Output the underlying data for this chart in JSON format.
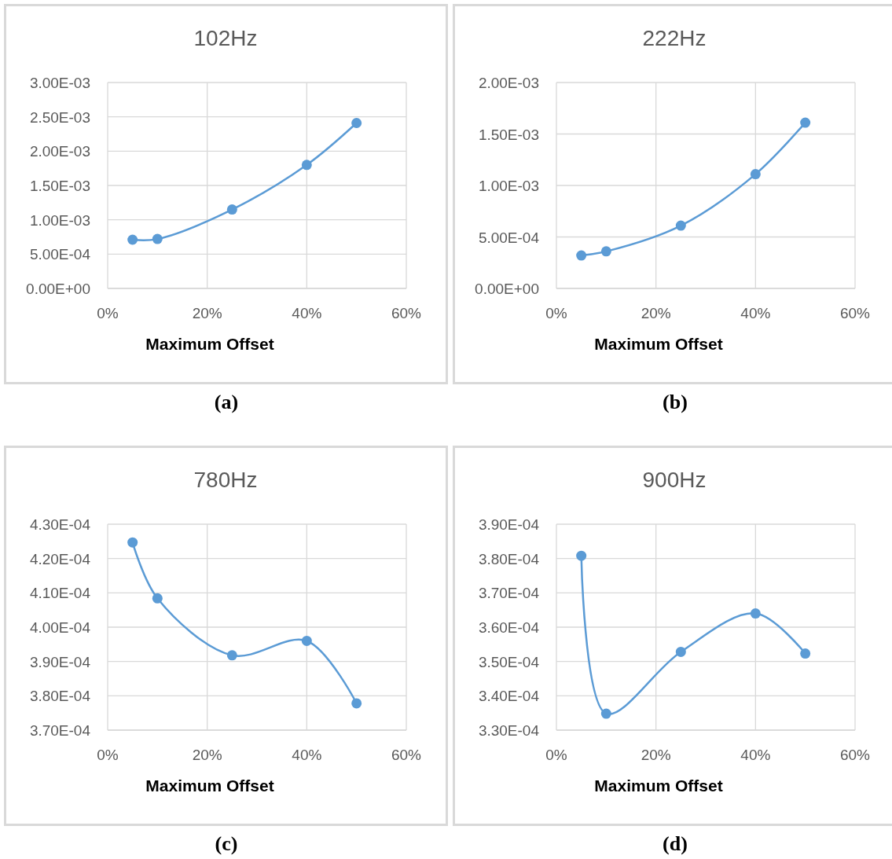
{
  "chart_data": [
    {
      "type": "line",
      "title": "102Hz",
      "xlabel": "Maximum Offset",
      "x": [
        5,
        10,
        25,
        40,
        50
      ],
      "series": [
        {
          "color": "#5b9bd5",
          "values": [
            0.00071,
            0.00072,
            0.00115,
            0.0018,
            0.00241
          ]
        }
      ],
      "xlim": [
        0,
        60
      ],
      "xticks": [
        {
          "value": 0,
          "label": "0%"
        },
        {
          "value": 20,
          "label": "20%"
        },
        {
          "value": 40,
          "label": "40%"
        },
        {
          "value": 60,
          "label": "60%"
        }
      ],
      "ylim": [
        0,
        0.003
      ],
      "yticks": [
        {
          "value": 0,
          "label": "0.00E+00"
        },
        {
          "value": 0.0005,
          "label": "5.00E-04"
        },
        {
          "value": 0.001,
          "label": "1.00E-03"
        },
        {
          "value": 0.0015,
          "label": "1.50E-03"
        },
        {
          "value": 0.002,
          "label": "2.00E-03"
        },
        {
          "value": 0.0025,
          "label": "2.50E-03"
        },
        {
          "value": 0.003,
          "label": "3.00E-03"
        }
      ],
      "grid": true,
      "marker": "circle",
      "annotations": [
        "(a)"
      ]
    },
    {
      "type": "line",
      "title": "222Hz",
      "xlabel": "Maximum Offset",
      "x": [
        5,
        10,
        25,
        40,
        50
      ],
      "series": [
        {
          "color": "#5b9bd5",
          "values": [
            0.00032,
            0.00036,
            0.00061,
            0.00111,
            0.00161
          ]
        }
      ],
      "xlim": [
        0,
        60
      ],
      "xticks": [
        {
          "value": 0,
          "label": "0%"
        },
        {
          "value": 20,
          "label": "20%"
        },
        {
          "value": 40,
          "label": "40%"
        },
        {
          "value": 60,
          "label": "60%"
        }
      ],
      "ylim": [
        0,
        0.002
      ],
      "yticks": [
        {
          "value": 0,
          "label": "0.00E+00"
        },
        {
          "value": 0.0005,
          "label": "5.00E-04"
        },
        {
          "value": 0.001,
          "label": "1.00E-03"
        },
        {
          "value": 0.0015,
          "label": "1.50E-03"
        },
        {
          "value": 0.002,
          "label": "2.00E-03"
        }
      ],
      "grid": true,
      "marker": "circle",
      "annotations": [
        "(b)"
      ]
    },
    {
      "type": "line",
      "title": "780Hz",
      "xlabel": "Maximum Offset",
      "x": [
        5,
        10,
        25,
        40,
        50
      ],
      "series": [
        {
          "color": "#5b9bd5",
          "values": [
            0.0004247,
            0.0004084,
            0.0003918,
            0.000396,
            0.0003778
          ]
        }
      ],
      "xlim": [
        0,
        60
      ],
      "xticks": [
        {
          "value": 0,
          "label": "0%"
        },
        {
          "value": 20,
          "label": "20%"
        },
        {
          "value": 40,
          "label": "40%"
        },
        {
          "value": 60,
          "label": "60%"
        }
      ],
      "ylim": [
        0.00037,
        0.00043
      ],
      "yticks": [
        {
          "value": 0.00037,
          "label": "3.70E-04"
        },
        {
          "value": 0.00038,
          "label": "3.80E-04"
        },
        {
          "value": 0.00039,
          "label": "3.90E-04"
        },
        {
          "value": 0.0004,
          "label": "4.00E-04"
        },
        {
          "value": 0.00041,
          "label": "4.10E-04"
        },
        {
          "value": 0.00042,
          "label": "4.20E-04"
        },
        {
          "value": 0.00043,
          "label": "4.30E-04"
        }
      ],
      "grid": true,
      "marker": "circle",
      "annotations": [
        "(c)"
      ]
    },
    {
      "type": "line",
      "title": "900Hz",
      "xlabel": "Maximum Offset",
      "x": [
        5,
        10,
        25,
        40,
        50
      ],
      "series": [
        {
          "color": "#5b9bd5",
          "values": [
            0.0003808,
            0.0003348,
            0.0003528,
            0.000364,
            0.0003523
          ]
        }
      ],
      "xlim": [
        0,
        60
      ],
      "xticks": [
        {
          "value": 0,
          "label": "0%"
        },
        {
          "value": 20,
          "label": "20%"
        },
        {
          "value": 40,
          "label": "40%"
        },
        {
          "value": 60,
          "label": "60%"
        }
      ],
      "ylim": [
        0.00033,
        0.00039
      ],
      "yticks": [
        {
          "value": 0.00033,
          "label": "3.30E-04"
        },
        {
          "value": 0.00034,
          "label": "3.40E-04"
        },
        {
          "value": 0.00035,
          "label": "3.50E-04"
        },
        {
          "value": 0.00036,
          "label": "3.60E-04"
        },
        {
          "value": 0.00037,
          "label": "3.70E-04"
        },
        {
          "value": 0.00038,
          "label": "3.80E-04"
        },
        {
          "value": 0.00039,
          "label": "3.90E-04"
        }
      ],
      "grid": true,
      "marker": "circle",
      "annotations": [
        "(d)"
      ]
    }
  ]
}
